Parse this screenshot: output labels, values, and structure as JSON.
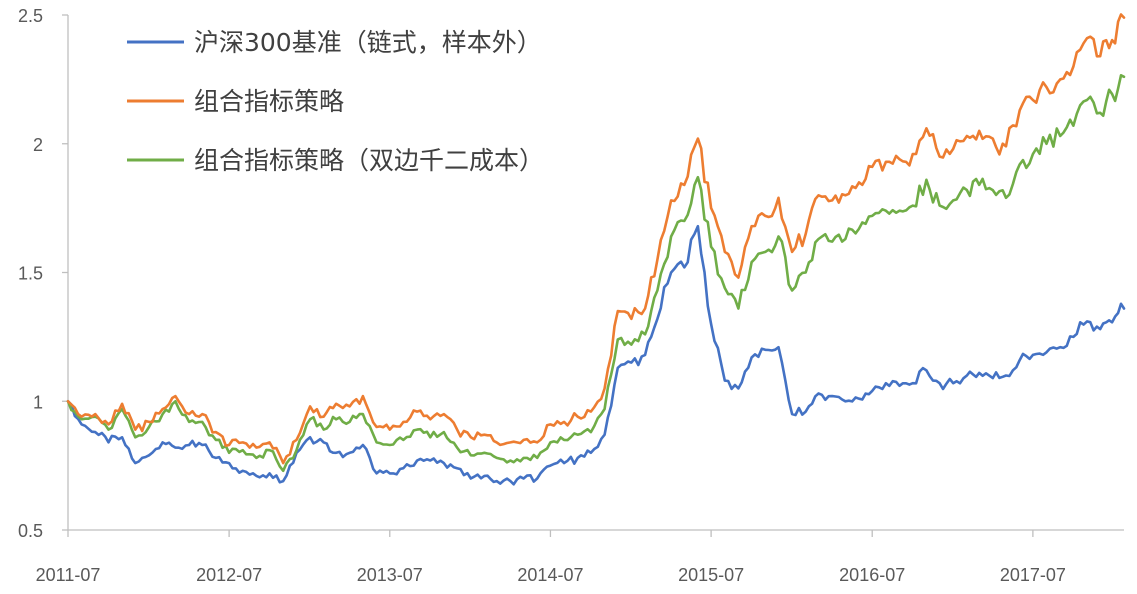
{
  "chart_data": {
    "type": "line",
    "title": "",
    "xlabel": "",
    "ylabel": "",
    "xlim": [
      "2011-07-01",
      "2018-01-24"
    ],
    "ylim": [
      0.5,
      2.5
    ],
    "x_tick_labels": [
      "2011-07",
      "2012-07",
      "2013-07",
      "2014-07",
      "2015-07",
      "2016-07",
      "2017-07"
    ],
    "x_tick_values": [
      "2011-07-01",
      "2012-07-01",
      "2013-07-01",
      "2014-07-01",
      "2015-07-01",
      "2016-07-01",
      "2017-07-01"
    ],
    "y_tick_labels": [
      "0.5",
      "1",
      "1.5",
      "2",
      "2.5"
    ],
    "y_tick_values": [
      0.5,
      1,
      1.5,
      2,
      2.5
    ],
    "grid": false,
    "legend_position": "top-left",
    "series": [
      {
        "name": "沪深300基准（链式，样本外）",
        "color": "#4472C4",
        "points": [
          [
            "2011-07-01",
            1.0
          ],
          [
            "2011-08-01",
            0.91
          ],
          [
            "2011-09-01",
            0.88
          ],
          [
            "2011-10-01",
            0.84
          ],
          [
            "2011-11-01",
            0.86
          ],
          [
            "2011-12-01",
            0.76
          ],
          [
            "2012-01-01",
            0.79
          ],
          [
            "2012-02-01",
            0.84
          ],
          [
            "2012-03-01",
            0.82
          ],
          [
            "2012-04-01",
            0.83
          ],
          [
            "2012-05-01",
            0.83
          ],
          [
            "2012-06-01",
            0.78
          ],
          [
            "2012-07-01",
            0.76
          ],
          [
            "2012-08-01",
            0.73
          ],
          [
            "2012-09-01",
            0.71
          ],
          [
            "2012-10-01",
            0.72
          ],
          [
            "2012-11-01",
            0.69
          ],
          [
            "2012-12-01",
            0.8
          ],
          [
            "2013-01-01",
            0.86
          ],
          [
            "2013-02-01",
            0.84
          ],
          [
            "2013-03-01",
            0.8
          ],
          [
            "2013-04-01",
            0.8
          ],
          [
            "2013-05-01",
            0.83
          ],
          [
            "2013-06-01",
            0.72
          ],
          [
            "2013-07-01",
            0.72
          ],
          [
            "2013-08-01",
            0.74
          ],
          [
            "2013-09-01",
            0.77
          ],
          [
            "2013-10-01",
            0.77
          ],
          [
            "2013-11-01",
            0.76
          ],
          [
            "2013-12-01",
            0.74
          ],
          [
            "2014-01-01",
            0.7
          ],
          [
            "2014-02-01",
            0.71
          ],
          [
            "2014-03-01",
            0.69
          ],
          [
            "2014-04-01",
            0.69
          ],
          [
            "2014-05-01",
            0.7
          ],
          [
            "2014-06-01",
            0.7
          ],
          [
            "2014-07-01",
            0.75
          ],
          [
            "2014-08-01",
            0.76
          ],
          [
            "2014-09-01",
            0.78
          ],
          [
            "2014-10-01",
            0.8
          ],
          [
            "2014-11-01",
            0.87
          ],
          [
            "2014-12-01",
            1.13
          ],
          [
            "2015-01-01",
            1.15
          ],
          [
            "2015-02-01",
            1.18
          ],
          [
            "2015-03-01",
            1.32
          ],
          [
            "2015-04-01",
            1.5
          ],
          [
            "2015-05-01",
            1.52
          ],
          [
            "2015-06-01",
            1.68
          ],
          [
            "2015-07-01",
            1.3
          ],
          [
            "2015-08-01",
            1.08
          ],
          [
            "2015-09-01",
            1.05
          ],
          [
            "2015-10-01",
            1.17
          ],
          [
            "2015-11-01",
            1.2
          ],
          [
            "2015-12-01",
            1.21
          ],
          [
            "2016-01-01",
            0.95
          ],
          [
            "2016-02-01",
            0.96
          ],
          [
            "2016-03-01",
            1.03
          ],
          [
            "2016-04-01",
            1.02
          ],
          [
            "2016-05-01",
            1.0
          ],
          [
            "2016-06-01",
            1.01
          ],
          [
            "2016-07-01",
            1.04
          ],
          [
            "2016-08-01",
            1.07
          ],
          [
            "2016-09-01",
            1.06
          ],
          [
            "2016-10-01",
            1.07
          ],
          [
            "2016-11-01",
            1.12
          ],
          [
            "2016-12-01",
            1.07
          ],
          [
            "2017-01-01",
            1.07
          ],
          [
            "2017-02-01",
            1.1
          ],
          [
            "2017-03-01",
            1.11
          ],
          [
            "2017-04-01",
            1.09
          ],
          [
            "2017-05-01",
            1.1
          ],
          [
            "2017-06-01",
            1.16
          ],
          [
            "2017-07-01",
            1.18
          ],
          [
            "2017-08-01",
            1.19
          ],
          [
            "2017-09-01",
            1.21
          ],
          [
            "2017-10-01",
            1.25
          ],
          [
            "2017-11-01",
            1.31
          ],
          [
            "2017-12-01",
            1.28
          ],
          [
            "2018-01-24",
            1.36
          ]
        ]
      },
      {
        "name": "组合指标策略",
        "color": "#ED7D31",
        "points": [
          [
            "2011-07-01",
            1.0
          ],
          [
            "2011-08-01",
            0.94
          ],
          [
            "2011-09-01",
            0.95
          ],
          [
            "2011-10-01",
            0.91
          ],
          [
            "2011-11-01",
            0.99
          ],
          [
            "2011-12-01",
            0.89
          ],
          [
            "2012-01-01",
            0.92
          ],
          [
            "2012-02-01",
            0.97
          ],
          [
            "2012-03-01",
            1.02
          ],
          [
            "2012-04-01",
            0.95
          ],
          [
            "2012-05-01",
            0.95
          ],
          [
            "2012-06-01",
            0.88
          ],
          [
            "2012-07-01",
            0.83
          ],
          [
            "2012-08-01",
            0.84
          ],
          [
            "2012-09-01",
            0.82
          ],
          [
            "2012-10-01",
            0.84
          ],
          [
            "2012-11-01",
            0.76
          ],
          [
            "2012-12-01",
            0.85
          ],
          [
            "2013-01-01",
            0.98
          ],
          [
            "2013-02-01",
            0.94
          ],
          [
            "2013-03-01",
            0.99
          ],
          [
            "2013-04-01",
            0.98
          ],
          [
            "2013-05-01",
            1.02
          ],
          [
            "2013-06-01",
            0.9
          ],
          [
            "2013-07-01",
            0.89
          ],
          [
            "2013-08-01",
            0.92
          ],
          [
            "2013-09-01",
            0.96
          ],
          [
            "2013-10-01",
            0.93
          ],
          [
            "2013-11-01",
            0.95
          ],
          [
            "2013-12-01",
            0.89
          ],
          [
            "2014-01-01",
            0.86
          ],
          [
            "2014-02-01",
            0.87
          ],
          [
            "2014-03-01",
            0.84
          ],
          [
            "2014-04-01",
            0.84
          ],
          [
            "2014-05-01",
            0.85
          ],
          [
            "2014-06-01",
            0.84
          ],
          [
            "2014-07-01",
            0.91
          ],
          [
            "2014-08-01",
            0.92
          ],
          [
            "2014-09-01",
            0.94
          ],
          [
            "2014-10-01",
            0.96
          ],
          [
            "2014-11-01",
            1.05
          ],
          [
            "2014-12-01",
            1.35
          ],
          [
            "2015-01-01",
            1.32
          ],
          [
            "2015-02-01",
            1.36
          ],
          [
            "2015-03-01",
            1.55
          ],
          [
            "2015-04-01",
            1.78
          ],
          [
            "2015-05-01",
            1.84
          ],
          [
            "2015-06-01",
            2.02
          ],
          [
            "2015-07-01",
            1.75
          ],
          [
            "2015-08-01",
            1.58
          ],
          [
            "2015-09-01",
            1.48
          ],
          [
            "2015-10-01",
            1.68
          ],
          [
            "2015-11-01",
            1.72
          ],
          [
            "2015-12-01",
            1.79
          ],
          [
            "2016-01-01",
            1.58
          ],
          [
            "2016-02-01",
            1.65
          ],
          [
            "2016-03-01",
            1.8
          ],
          [
            "2016-04-01",
            1.78
          ],
          [
            "2016-05-01",
            1.8
          ],
          [
            "2016-06-01",
            1.85
          ],
          [
            "2016-07-01",
            1.91
          ],
          [
            "2016-08-01",
            1.93
          ],
          [
            "2016-09-01",
            1.94
          ],
          [
            "2016-10-01",
            1.96
          ],
          [
            "2016-11-01",
            2.06
          ],
          [
            "2016-12-01",
            1.95
          ],
          [
            "2017-01-01",
            1.98
          ],
          [
            "2017-02-01",
            2.03
          ],
          [
            "2017-03-01",
            2.05
          ],
          [
            "2017-04-01",
            2.02
          ],
          [
            "2017-05-01",
            1.99
          ],
          [
            "2017-06-01",
            2.13
          ],
          [
            "2017-07-01",
            2.17
          ],
          [
            "2017-08-01",
            2.22
          ],
          [
            "2017-09-01",
            2.25
          ],
          [
            "2017-10-01",
            2.3
          ],
          [
            "2017-11-01",
            2.41
          ],
          [
            "2017-12-01",
            2.34
          ],
          [
            "2018-01-24",
            2.49
          ]
        ]
      },
      {
        "name": "组合指标策略（双边千二成本）",
        "color": "#70AD47",
        "points": [
          [
            "2011-07-01",
            1.0
          ],
          [
            "2011-08-01",
            0.93
          ],
          [
            "2011-09-01",
            0.94
          ],
          [
            "2011-10-01",
            0.89
          ],
          [
            "2011-11-01",
            0.97
          ],
          [
            "2011-12-01",
            0.86
          ],
          [
            "2012-01-01",
            0.9
          ],
          [
            "2012-02-01",
            0.95
          ],
          [
            "2012-03-01",
            1.0
          ],
          [
            "2012-04-01",
            0.92
          ],
          [
            "2012-05-01",
            0.92
          ],
          [
            "2012-06-01",
            0.85
          ],
          [
            "2012-07-01",
            0.8
          ],
          [
            "2012-08-01",
            0.81
          ],
          [
            "2012-09-01",
            0.78
          ],
          [
            "2012-10-01",
            0.81
          ],
          [
            "2012-11-01",
            0.73
          ],
          [
            "2012-12-01",
            0.81
          ],
          [
            "2013-01-01",
            0.93
          ],
          [
            "2013-02-01",
            0.89
          ],
          [
            "2013-03-01",
            0.93
          ],
          [
            "2013-04-01",
            0.92
          ],
          [
            "2013-05-01",
            0.95
          ],
          [
            "2013-06-01",
            0.84
          ],
          [
            "2013-07-01",
            0.83
          ],
          [
            "2013-08-01",
            0.85
          ],
          [
            "2013-09-01",
            0.89
          ],
          [
            "2013-10-01",
            0.86
          ],
          [
            "2013-11-01",
            0.88
          ],
          [
            "2013-12-01",
            0.82
          ],
          [
            "2014-01-01",
            0.79
          ],
          [
            "2014-02-01",
            0.8
          ],
          [
            "2014-03-01",
            0.78
          ],
          [
            "2014-04-01",
            0.77
          ],
          [
            "2014-05-01",
            0.78
          ],
          [
            "2014-06-01",
            0.78
          ],
          [
            "2014-07-01",
            0.84
          ],
          [
            "2014-08-01",
            0.85
          ],
          [
            "2014-09-01",
            0.87
          ],
          [
            "2014-10-01",
            0.88
          ],
          [
            "2014-11-01",
            0.97
          ],
          [
            "2014-12-01",
            1.24
          ],
          [
            "2015-01-01",
            1.22
          ],
          [
            "2015-02-01",
            1.26
          ],
          [
            "2015-03-01",
            1.43
          ],
          [
            "2015-04-01",
            1.64
          ],
          [
            "2015-05-01",
            1.7
          ],
          [
            "2015-06-01",
            1.87
          ],
          [
            "2015-07-01",
            1.6
          ],
          [
            "2015-08-01",
            1.44
          ],
          [
            "2015-09-01",
            1.36
          ],
          [
            "2015-10-01",
            1.54
          ],
          [
            "2015-11-01",
            1.58
          ],
          [
            "2015-12-01",
            1.64
          ],
          [
            "2016-01-01",
            1.43
          ],
          [
            "2016-02-01",
            1.5
          ],
          [
            "2016-03-01",
            1.63
          ],
          [
            "2016-04-01",
            1.62
          ],
          [
            "2016-05-01",
            1.63
          ],
          [
            "2016-06-01",
            1.67
          ],
          [
            "2016-07-01",
            1.72
          ],
          [
            "2016-08-01",
            1.74
          ],
          [
            "2016-09-01",
            1.74
          ],
          [
            "2016-10-01",
            1.76
          ],
          [
            "2016-11-01",
            1.86
          ],
          [
            "2016-12-01",
            1.76
          ],
          [
            "2017-01-01",
            1.78
          ],
          [
            "2017-02-01",
            1.82
          ],
          [
            "2017-03-01",
            1.84
          ],
          [
            "2017-04-01",
            1.82
          ],
          [
            "2017-05-01",
            1.79
          ],
          [
            "2017-06-01",
            1.92
          ],
          [
            "2017-07-01",
            1.96
          ],
          [
            "2017-08-01",
            2.0
          ],
          [
            "2017-09-01",
            2.03
          ],
          [
            "2017-10-01",
            2.07
          ],
          [
            "2017-11-01",
            2.17
          ],
          [
            "2017-12-01",
            2.12
          ],
          [
            "2018-01-24",
            2.26
          ]
        ]
      }
    ]
  }
}
